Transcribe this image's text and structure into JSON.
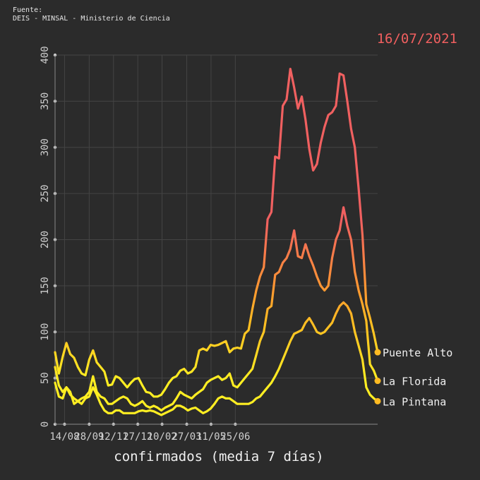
{
  "source": {
    "line1": "Fuente:",
    "line2": "DEIS - MINSAL - Ministerio de Ciencia"
  },
  "date_label": "16/07/2021",
  "chart_data": {
    "type": "line",
    "xlabel": "confirmados (media 7 días)",
    "ylabel": "",
    "ylim": [
      0,
      400
    ],
    "yticks": [
      0,
      50,
      100,
      150,
      200,
      250,
      300,
      350,
      400
    ],
    "xtick_labels": [
      "14/08",
      "28/09",
      "12/11",
      "27/12",
      "10/02",
      "27/03",
      "11/05",
      "25/06"
    ],
    "xtick_weeks": [
      2.5,
      9,
      15.4,
      21.8,
      28.2,
      34.7,
      41.1,
      47.5
    ],
    "grid": true,
    "colors": {
      "low": "#ffee22",
      "mid": "#ffbb22",
      "high": "#f06060"
    },
    "series": [
      {
        "name": "Puente Alto",
        "values": [
          78,
          55,
          73,
          88,
          76,
          72,
          62,
          55,
          53,
          70,
          80,
          67,
          62,
          57,
          42,
          43,
          52,
          50,
          45,
          40,
          45,
          49,
          50,
          42,
          35,
          34,
          30,
          30,
          32,
          38,
          45,
          50,
          52,
          58,
          60,
          55,
          57,
          62,
          80,
          82,
          80,
          86,
          85,
          86,
          88,
          90,
          78,
          82,
          83,
          82,
          98,
          102,
          125,
          145,
          160,
          170,
          222,
          230,
          290,
          288,
          345,
          352,
          385,
          365,
          342,
          355,
          330,
          298,
          275,
          282,
          305,
          322,
          335,
          338,
          345,
          380,
          378,
          350,
          320,
          300,
          255,
          205,
          130,
          115,
          98,
          78
        ]
      },
      {
        "name": "La Florida",
        "values": [
          62,
          42,
          35,
          40,
          32,
          28,
          25,
          28,
          30,
          35,
          52,
          35,
          30,
          28,
          22,
          22,
          25,
          28,
          30,
          28,
          22,
          20,
          22,
          25,
          20,
          18,
          20,
          18,
          15,
          18,
          20,
          22,
          28,
          35,
          32,
          30,
          28,
          32,
          35,
          38,
          45,
          48,
          50,
          52,
          48,
          50,
          55,
          42,
          40,
          45,
          50,
          55,
          60,
          75,
          90,
          100,
          125,
          128,
          162,
          165,
          175,
          180,
          190,
          210,
          182,
          180,
          195,
          182,
          172,
          160,
          150,
          145,
          150,
          180,
          200,
          210,
          235,
          215,
          200,
          165,
          145,
          130,
          112,
          65,
          58,
          47
        ]
      },
      {
        "name": "La Pintana",
        "values": [
          45,
          30,
          28,
          40,
          35,
          22,
          25,
          22,
          28,
          30,
          40,
          32,
          22,
          15,
          12,
          12,
          15,
          15,
          12,
          12,
          12,
          12,
          14,
          15,
          14,
          15,
          14,
          12,
          10,
          12,
          14,
          16,
          20,
          20,
          18,
          15,
          17,
          18,
          15,
          12,
          14,
          17,
          22,
          28,
          30,
          28,
          28,
          25,
          22,
          22,
          22,
          22,
          24,
          28,
          30,
          35,
          40,
          45,
          52,
          60,
          70,
          80,
          90,
          98,
          100,
          102,
          110,
          115,
          108,
          100,
          98,
          100,
          105,
          110,
          120,
          128,
          132,
          128,
          120,
          100,
          85,
          70,
          40,
          32,
          28,
          25
        ]
      }
    ]
  }
}
